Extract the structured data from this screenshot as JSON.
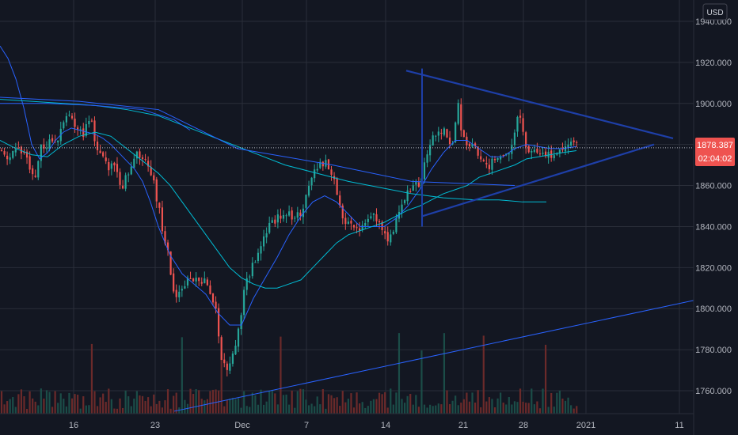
{
  "currency_label": "USD",
  "colors": {
    "background": "#131722",
    "grid": "#2a2e39",
    "up": "#26a69a",
    "down": "#ef5350",
    "ma_fast": "#2962ff",
    "ma_slow": "#00bcd4",
    "trendline": "#1e3fa8",
    "price_tag": "#ef5350"
  },
  "price_tag": {
    "price": "1878.387",
    "countdown": "02:04:02"
  },
  "chart_data": {
    "type": "candlestick",
    "title": "",
    "xlabel": "",
    "ylabel": "",
    "ylim": [
      1750,
      1950
    ],
    "y_ticks": [
      "1760.000",
      "1780.000",
      "1800.000",
      "1820.000",
      "1840.000",
      "1860.000",
      "1880.000",
      "1900.000",
      "1920.000",
      "1940.000"
    ],
    "x_ticks": [
      "16",
      "23",
      "Dec",
      "7",
      "14",
      "21",
      "28",
      "2021",
      "11"
    ],
    "grid": true,
    "current_price": 1878.387,
    "price_path": [
      [
        0,
        1878
      ],
      [
        12,
        1872
      ],
      [
        22,
        1880
      ],
      [
        34,
        1872
      ],
      [
        42,
        1862
      ],
      [
        52,
        1878
      ],
      [
        62,
        1880
      ],
      [
        75,
        1885
      ],
      [
        85,
        1896
      ],
      [
        95,
        1890
      ],
      [
        105,
        1886
      ],
      [
        115,
        1890
      ],
      [
        125,
        1876
      ],
      [
        135,
        1870
      ],
      [
        145,
        1868
      ],
      [
        155,
        1860
      ],
      [
        165,
        1868
      ],
      [
        175,
        1876
      ],
      [
        185,
        1872
      ],
      [
        195,
        1860
      ],
      [
        205,
        1840
      ],
      [
        213,
        1826
      ],
      [
        220,
        1805
      ],
      [
        230,
        1812
      ],
      [
        240,
        1813
      ],
      [
        250,
        1815
      ],
      [
        262,
        1812
      ],
      [
        272,
        1800
      ],
      [
        280,
        1775
      ],
      [
        288,
        1768
      ],
      [
        295,
        1780
      ],
      [
        302,
        1790
      ],
      [
        310,
        1812
      ],
      [
        320,
        1822
      ],
      [
        330,
        1832
      ],
      [
        340,
        1840
      ],
      [
        350,
        1845
      ],
      [
        360,
        1846
      ],
      [
        370,
        1845
      ],
      [
        380,
        1845
      ],
      [
        390,
        1862
      ],
      [
        400,
        1868
      ],
      [
        410,
        1872
      ],
      [
        422,
        1864
      ],
      [
        432,
        1845
      ],
      [
        440,
        1842
      ],
      [
        450,
        1840
      ],
      [
        460,
        1840
      ],
      [
        470,
        1845
      ],
      [
        480,
        1842
      ],
      [
        490,
        1830
      ],
      [
        500,
        1842
      ],
      [
        510,
        1852
      ],
      [
        520,
        1860
      ],
      [
        530,
        1862
      ],
      [
        540,
        1876
      ],
      [
        550,
        1885
      ],
      [
        560,
        1888
      ],
      [
        570,
        1878
      ],
      [
        578,
        1900
      ],
      [
        585,
        1882
      ],
      [
        595,
        1880
      ],
      [
        605,
        1875
      ],
      [
        615,
        1868
      ],
      [
        625,
        1872
      ],
      [
        635,
        1875
      ],
      [
        645,
        1878
      ],
      [
        655,
        1895
      ],
      [
        662,
        1882
      ],
      [
        670,
        1875
      ],
      [
        680,
        1878
      ],
      [
        690,
        1875
      ],
      [
        700,
        1875
      ],
      [
        710,
        1878
      ],
      [
        720,
        1880
      ],
      [
        728,
        1882
      ]
    ],
    "series": [
      {
        "type": "line",
        "points": [
          [
            0,
            1928
          ],
          [
            10,
            1922
          ],
          [
            20,
            1912
          ],
          [
            30,
            1898
          ],
          [
            40,
            1880
          ],
          [
            50,
            1873
          ],
          [
            60,
            1876
          ],
          [
            70,
            1882
          ],
          [
            80,
            1886
          ],
          [
            90,
            1888
          ],
          [
            100,
            1887
          ],
          [
            110,
            1886
          ],
          [
            120,
            1885
          ],
          [
            130,
            1883
          ],
          [
            140,
            1880
          ],
          [
            150,
            1876
          ],
          [
            160,
            1872
          ],
          [
            170,
            1868
          ],
          [
            180,
            1862
          ],
          [
            190,
            1852
          ],
          [
            200,
            1840
          ],
          [
            215,
            1826
          ],
          [
            230,
            1817
          ],
          [
            245,
            1812
          ],
          [
            260,
            1807
          ],
          [
            275,
            1798
          ],
          [
            290,
            1792
          ],
          [
            305,
            1792
          ],
          [
            320,
            1805
          ],
          [
            335,
            1815
          ],
          [
            350,
            1825
          ],
          [
            365,
            1836
          ],
          [
            380,
            1845
          ],
          [
            395,
            1852
          ],
          [
            410,
            1855
          ],
          [
            425,
            1852
          ],
          [
            440,
            1846
          ],
          [
            455,
            1840
          ],
          [
            470,
            1840
          ],
          [
            485,
            1840
          ],
          [
            500,
            1844
          ],
          [
            515,
            1850
          ],
          [
            530,
            1858
          ],
          [
            545,
            1868
          ],
          [
            560,
            1876
          ],
          [
            575,
            1882
          ],
          [
            590,
            1882
          ],
          [
            605,
            1878
          ],
          [
            620,
            1874
          ],
          [
            635,
            1874
          ],
          [
            650,
            1878
          ],
          [
            665,
            1880
          ],
          [
            680,
            1879
          ],
          [
            695,
            1878
          ],
          [
            710,
            1878
          ],
          [
            728,
            1879
          ]
        ]
      },
      {
        "type": "line",
        "points": [
          [
            0,
            1882
          ],
          [
            20,
            1878
          ],
          [
            40,
            1875
          ],
          [
            60,
            1874
          ],
          [
            80,
            1880
          ],
          [
            100,
            1884
          ],
          [
            120,
            1886
          ],
          [
            140,
            1884
          ],
          [
            160,
            1878
          ],
          [
            180,
            1872
          ],
          [
            200,
            1866
          ],
          [
            215,
            1860
          ],
          [
            230,
            1852
          ],
          [
            245,
            1844
          ],
          [
            260,
            1836
          ],
          [
            275,
            1828
          ],
          [
            290,
            1820
          ],
          [
            305,
            1815
          ],
          [
            320,
            1812
          ],
          [
            335,
            1810
          ],
          [
            350,
            1810
          ],
          [
            365,
            1812
          ],
          [
            380,
            1814
          ],
          [
            395,
            1820
          ],
          [
            410,
            1826
          ],
          [
            425,
            1832
          ],
          [
            440,
            1836
          ],
          [
            455,
            1838
          ],
          [
            470,
            1840
          ],
          [
            485,
            1842
          ],
          [
            500,
            1845
          ],
          [
            515,
            1848
          ],
          [
            530,
            1850
          ],
          [
            545,
            1853
          ],
          [
            560,
            1856
          ],
          [
            575,
            1858
          ],
          [
            590,
            1860
          ],
          [
            605,
            1864
          ],
          [
            620,
            1866
          ],
          [
            635,
            1868
          ],
          [
            650,
            1870
          ],
          [
            665,
            1873
          ],
          [
            680,
            1874
          ],
          [
            695,
            1875
          ],
          [
            710,
            1876
          ],
          [
            728,
            1877
          ]
        ]
      },
      {
        "type": "line",
        "points": [
          [
            0,
            1902
          ],
          [
            40,
            1901
          ],
          [
            80,
            1900
          ],
          [
            120,
            1899
          ],
          [
            160,
            1897
          ],
          [
            200,
            1894
          ],
          [
            240,
            1888
          ],
          [
            280,
            1882
          ],
          [
            320,
            1876
          ],
          [
            360,
            1870
          ],
          [
            400,
            1866
          ],
          [
            440,
            1862
          ],
          [
            480,
            1859
          ],
          [
            520,
            1856
          ],
          [
            560,
            1854
          ],
          [
            600,
            1853
          ],
          [
            630,
            1853
          ],
          [
            660,
            1852
          ],
          [
            690,
            1852
          ]
        ]
      },
      {
        "type": "line",
        "points": [
          [
            0,
            1900
          ],
          [
            60,
            1900
          ],
          [
            120,
            1899
          ],
          [
            180,
            1897
          ],
          [
            220,
            1892
          ],
          [
            240,
            1887
          ]
        ]
      },
      {
        "type": "line",
        "points": [
          [
            0,
            1903
          ],
          [
            100,
            1901
          ],
          [
            200,
            1897
          ],
          [
            300,
            1878
          ],
          [
            420,
            1870
          ],
          [
            520,
            1862
          ],
          [
            650,
            1860
          ]
        ]
      }
    ],
    "drawn_lines": [
      {
        "from": [
          513,
          1916
        ],
        "to": [
          850,
          1883
        ]
      },
      {
        "from": [
          533,
          1845
        ],
        "to": [
          826,
          1880
        ]
      },
      {
        "from": [
          533,
          1917
        ],
        "to": [
          533,
          1840
        ]
      },
      {
        "from": [
          220,
          1750
        ],
        "to": [
          876,
          1804
        ]
      }
    ]
  }
}
